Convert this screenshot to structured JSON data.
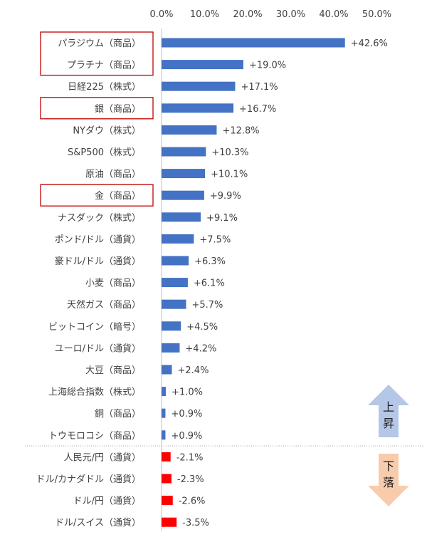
{
  "chart_data": {
    "type": "bar",
    "orientation": "horizontal",
    "title": "",
    "xlabel": "",
    "ylabel": "",
    "xlim": [
      0,
      50
    ],
    "x_ticks": [
      "0.0%",
      "10.0%",
      "20.0%",
      "30.0%",
      "40.0%",
      "50.0%"
    ],
    "categories": [
      "パラジウム（商品）",
      "プラチナ（商品）",
      "日経225（株式）",
      "銀（商品）",
      "NYダウ（株式）",
      "S&P500（株式）",
      "原油（商品）",
      "金（商品）",
      "ナスダック（株式）",
      "ポンド/ドル（通貨）",
      "豪ドル/ドル（通貨）",
      "小麦（商品）",
      "天然ガス（商品）",
      "ビットコイン（暗号）",
      "ユーロ/ドル（通貨）",
      "大豆（商品）",
      "上海総合指数（株式）",
      "銅（商品）",
      "トウモロコシ（商品）",
      "人民元/円（通貨）",
      "ドル/カナダドル（通貨）",
      "ドル/円（通貨）",
      "ドル/スイス（通貨）"
    ],
    "values": [
      42.6,
      19.0,
      17.1,
      16.7,
      12.8,
      10.3,
      10.1,
      9.9,
      9.1,
      7.5,
      6.3,
      6.1,
      5.7,
      4.5,
      4.2,
      2.4,
      1.0,
      0.9,
      0.9,
      -2.1,
      -2.3,
      -2.6,
      -3.5
    ],
    "value_labels": [
      "+42.6%",
      "+19.0%",
      "+17.1%",
      "+16.7%",
      "+12.8%",
      "+10.3%",
      "+10.1%",
      "+9.9%",
      "+9.1%",
      "+7.5%",
      "+6.3%",
      "+6.1%",
      "+5.7%",
      "+4.5%",
      "+4.2%",
      "+2.4%",
      "+1.0%",
      "+0.9%",
      "+0.9%",
      "-2.1%",
      "-2.3%",
      "-2.6%",
      "-3.5%"
    ],
    "highlighted": [
      "パラジウム（商品）",
      "プラチナ（商品）",
      "銀（商品）",
      "金（商品）"
    ],
    "grid": false
  },
  "legend": {
    "up_label": [
      "上",
      "昇"
    ],
    "down_label": [
      "下",
      "落"
    ]
  },
  "colors": {
    "positive": "#4472C4",
    "negative": "#FF0000",
    "highlight_box": "#C00000",
    "up_arrow": "#B4C7E7",
    "down_arrow": "#F8CBAD",
    "axis": "#BFBFBF",
    "divider": "#A6A6A6"
  }
}
